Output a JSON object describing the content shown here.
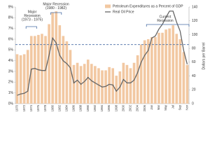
{
  "chart_data": {
    "type": "bar_line",
    "categories": [
      "1970",
      null,
      "1972",
      null,
      "1974",
      null,
      "1976",
      null,
      "1978",
      null,
      "1980",
      null,
      "1982",
      null,
      "1984",
      null,
      "1986",
      null,
      "1988",
      null,
      "1990",
      null,
      "1992",
      null,
      "1994",
      null,
      "1996",
      null,
      "1998",
      null,
      "2000",
      null,
      "2002",
      null,
      "2004",
      null,
      "2006",
      null,
      "Jan",
      null,
      "Mar",
      null,
      "May",
      null,
      "Jul",
      null,
      "Sep",
      null,
      "Nov"
    ],
    "series": [
      {
        "name": "Petroleum Expenditures as a Percent of GDP",
        "color": "#f2c8a2",
        "axis": "y",
        "values": [
          4.6,
          4.5,
          4.6,
          5.0,
          6.3,
          6.3,
          6.4,
          6.5,
          6.3,
          7.4,
          8.5,
          8.6,
          7.3,
          6.3,
          5.8,
          5.0,
          3.6,
          3.8,
          3.5,
          3.7,
          4.1,
          3.7,
          3.5,
          3.3,
          3.1,
          3.1,
          3.4,
          3.3,
          2.6,
          3.0,
          3.8,
          3.6,
          3.3,
          3.8,
          4.5,
          5.5,
          5.9,
          6.0,
          6.2,
          6.2,
          6.6,
          6.6,
          6.9,
          7.0,
          7.3,
          6.5,
          6.0,
          4.8,
          3.6
        ]
      },
      {
        "name": "Real Oil Price",
        "color": "#666666",
        "axis": "y2",
        "values": [
          12,
          14,
          15,
          18,
          50,
          51,
          49,
          48,
          48,
          70,
          95,
          88,
          70,
          62,
          58,
          52,
          30,
          34,
          28,
          32,
          38,
          33,
          30,
          27,
          24,
          25,
          28,
          27,
          18,
          24,
          35,
          30,
          30,
          34,
          45,
          60,
          70,
          77,
          95,
          98,
          108,
          115,
          125,
          134,
          134,
          118,
          105,
          77,
          57
        ]
      }
    ],
    "ylim": [
      0,
      9
    ],
    "yticks": [
      {
        "value": 0,
        "label": "0%"
      },
      {
        "value": 1,
        "label": "1%"
      },
      {
        "value": 2,
        "label": "2%"
      },
      {
        "value": 3,
        "label": "3%"
      },
      {
        "value": 4,
        "label": "4%"
      },
      {
        "value": 5,
        "label": "5%"
      },
      {
        "value": 6,
        "label": "6%"
      },
      {
        "value": 7,
        "label": "7%"
      },
      {
        "value": 8,
        "label": "8%"
      },
      {
        "value": 9,
        "label": "9%"
      }
    ],
    "y2lim": [
      0,
      140
    ],
    "y2ticks": [
      0,
      20,
      40,
      60,
      80,
      100,
      120,
      140
    ],
    "y2label": "Dollars per Barrel",
    "hline": 5.5,
    "hline_color": "#4a6fa5",
    "annotations": [
      {
        "lines": [
          "Major",
          "Recession",
          "(1973 - 1975)"
        ]
      },
      {
        "lines": [
          "Major Recession",
          "(1980 - 1982)"
        ]
      },
      {
        "lines": [
          "Current",
          "Recession"
        ]
      }
    ]
  }
}
